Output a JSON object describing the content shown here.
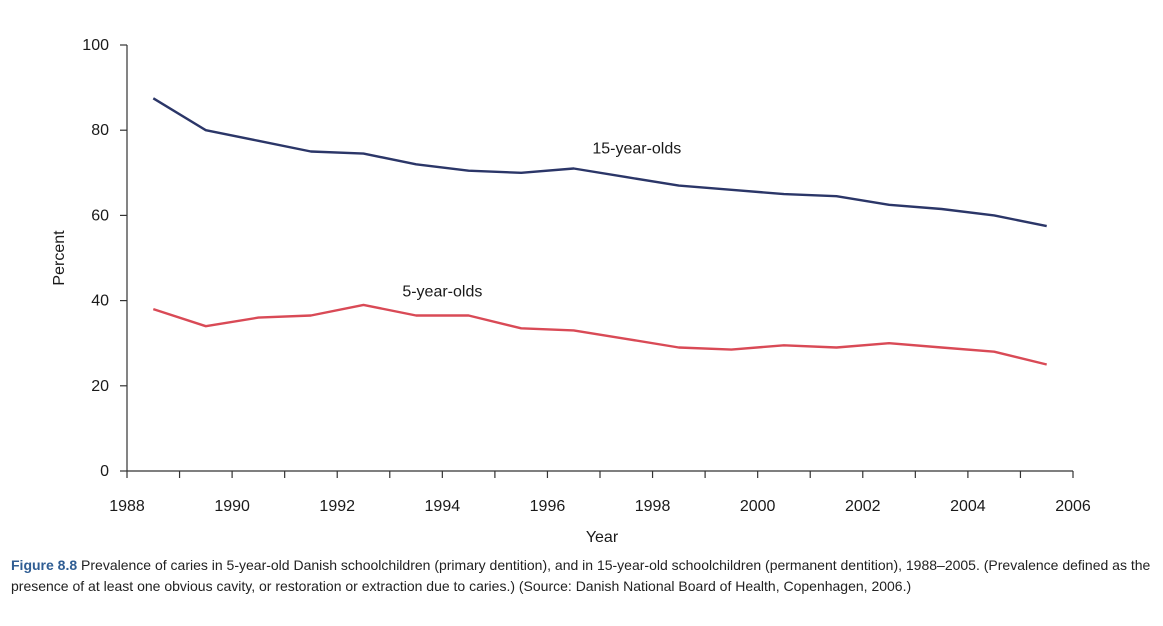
{
  "chart_data": {
    "type": "line",
    "xlabel": "Year",
    "ylabel": "Percent",
    "xlim": [
      1988,
      2006
    ],
    "ylim": [
      0,
      100
    ],
    "x_ticks": [
      1988,
      1990,
      1992,
      1994,
      1996,
      1998,
      2000,
      2002,
      2004,
      2006
    ],
    "y_ticks": [
      0,
      20,
      40,
      60,
      80,
      100
    ],
    "x": [
      1988.5,
      1989.5,
      1990.5,
      1991.5,
      1992.5,
      1993.5,
      1994.5,
      1995.5,
      1996.5,
      1997.5,
      1998.5,
      1999.5,
      2000.5,
      2001.5,
      2002.5,
      2003.5,
      2004.5,
      2005.5
    ],
    "series": [
      {
        "name": "15-year-olds",
        "color": "#2b3668",
        "values": [
          87.5,
          80,
          77.5,
          75,
          74.5,
          72,
          70.5,
          70,
          71,
          69,
          67,
          66,
          65,
          64.5,
          62.5,
          61.5,
          60,
          57.5
        ]
      },
      {
        "name": "5-year-olds",
        "color": "#d94a56",
        "values": [
          38,
          34,
          36,
          36.5,
          39,
          36.5,
          36.5,
          33.5,
          33,
          31,
          29,
          28.5,
          29.5,
          29,
          30,
          29,
          28,
          25
        ]
      }
    ]
  },
  "caption": {
    "label": "Figure 8.8",
    "text": "Prevalence of caries in 5-year-old Danish schoolchildren (primary dentition), and in 15-year-old schoolchildren (permanent dentition), 1988–2005. (Prevalence defined as the presence of at least one obvious cavity, or restoration or extraction due to caries.) (Source: Danish National Board of Health, Copenhagen, 2006.)"
  }
}
